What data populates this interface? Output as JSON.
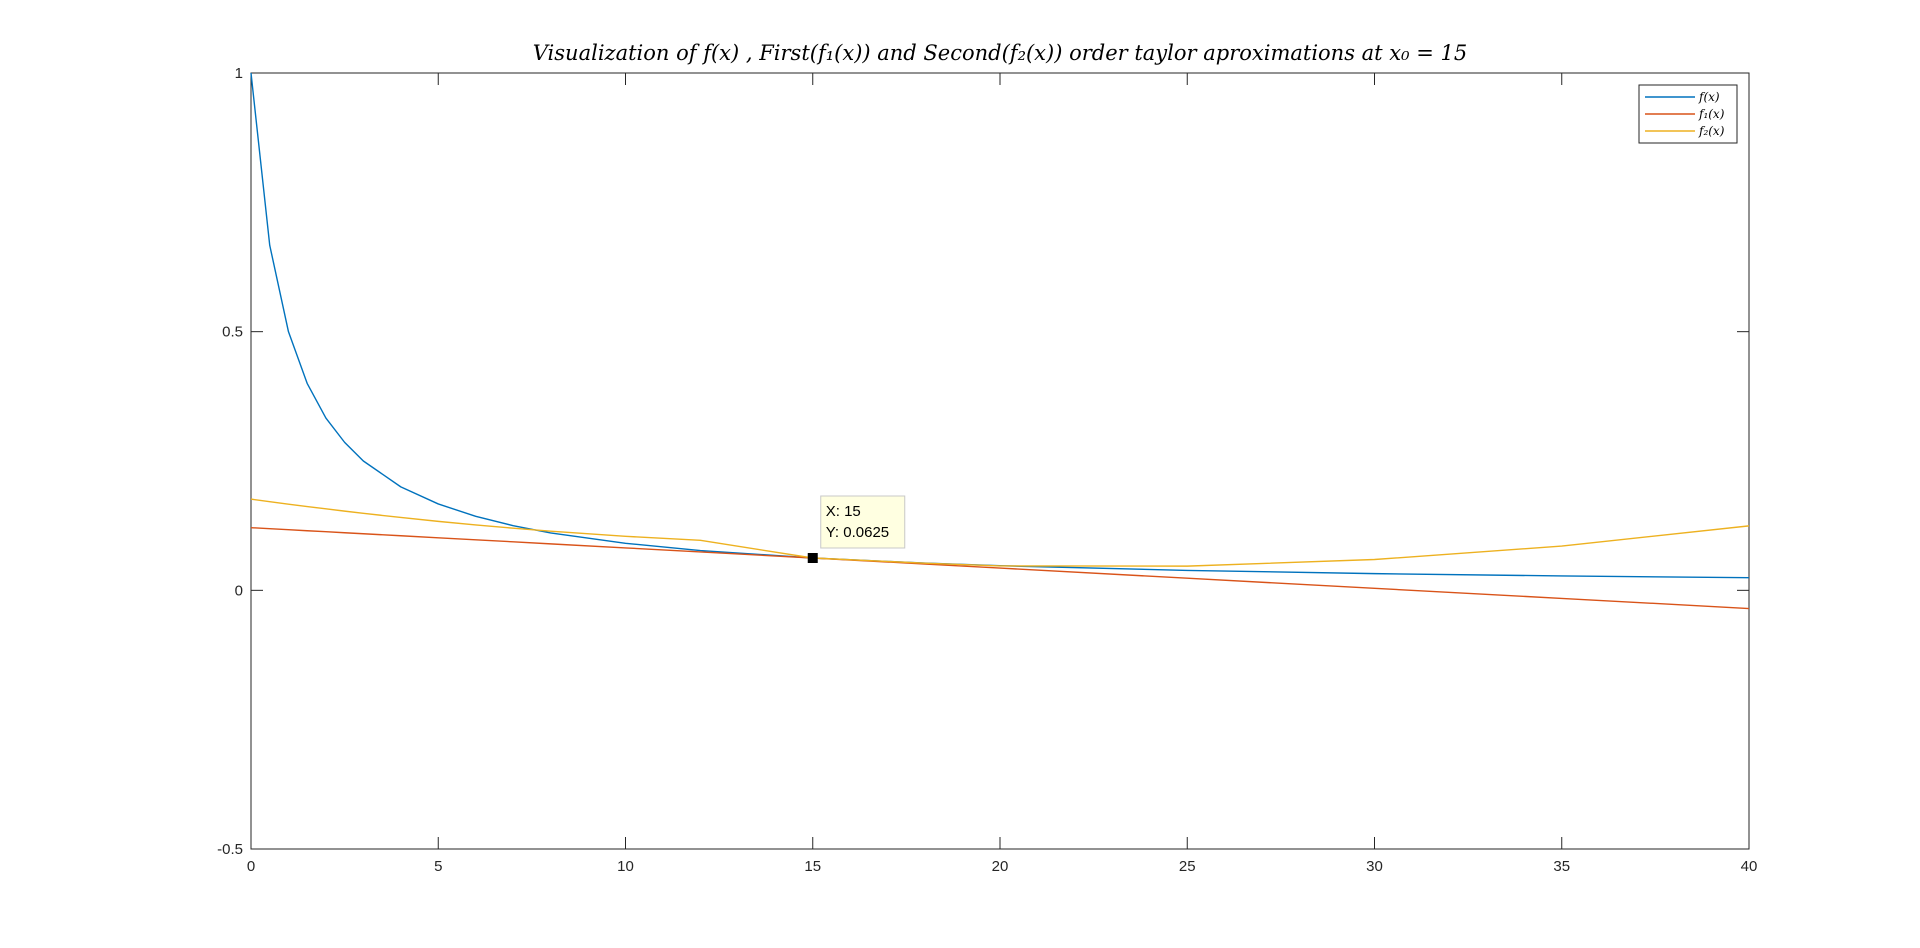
{
  "chart_data": {
    "type": "line",
    "title": "Visualization of f(x) , First(f₁(x)) and Second(f₂(x)) order taylor aproximations at x₀ = 15",
    "xlabel": "",
    "ylabel": "",
    "xlim": [
      0,
      40
    ],
    "ylim": [
      -0.5,
      1
    ],
    "x_ticks": [
      0,
      5,
      10,
      15,
      20,
      25,
      30,
      35,
      40
    ],
    "y_ticks": [
      -0.5,
      0,
      0.5,
      1
    ],
    "x_tick_labels": [
      "0",
      "5",
      "10",
      "15",
      "20",
      "25",
      "30",
      "35",
      "40"
    ],
    "y_tick_labels": [
      "-0.5",
      "0",
      "0.5",
      "1"
    ],
    "grid": false,
    "legend_position": "top-right",
    "x": [
      0,
      0.5,
      1,
      1.5,
      2,
      2.5,
      3,
      4,
      5,
      6,
      7,
      8,
      10,
      12,
      15,
      18,
      20,
      25,
      30,
      35,
      40
    ],
    "series": [
      {
        "name": "f(x)",
        "color": "#0072BD",
        "values": [
          1,
          0.667,
          0.5,
          0.4,
          0.333,
          0.286,
          0.25,
          0.2,
          0.167,
          0.143,
          0.125,
          0.111,
          0.0909,
          0.0769,
          0.0625,
          0.0526,
          0.0476,
          0.0385,
          0.0323,
          0.0278,
          0.0244
        ]
      },
      {
        "name": "f₁(x)",
        "color": "#D95319",
        "values": [
          0.1211,
          0.1191,
          0.1172,
          0.1152,
          0.1133,
          0.1113,
          0.1094,
          0.1055,
          0.1016,
          0.0977,
          0.0938,
          0.0898,
          0.082,
          0.0742,
          0.0625,
          0.0508,
          0.043,
          0.0234,
          0.0039,
          -0.0156,
          -0.0352
        ]
      },
      {
        "name": "f₂(x)",
        "color": "#EDB120",
        "values": [
          0.1763,
          0.1714,
          0.1666,
          0.162,
          0.1575,
          0.1531,
          0.1489,
          0.1408,
          0.1333,
          0.1264,
          0.1201,
          0.1143,
          0.1044,
          0.0966,
          0.0625,
          0.0525,
          0.0472,
          0.0468,
          0.0596,
          0.0855,
          0.1246
        ]
      }
    ],
    "annotations": [
      {
        "type": "datatip",
        "x": 15,
        "y": 0.0625,
        "lines": [
          "X: 15",
          "Y: 0.0625"
        ]
      }
    ]
  }
}
